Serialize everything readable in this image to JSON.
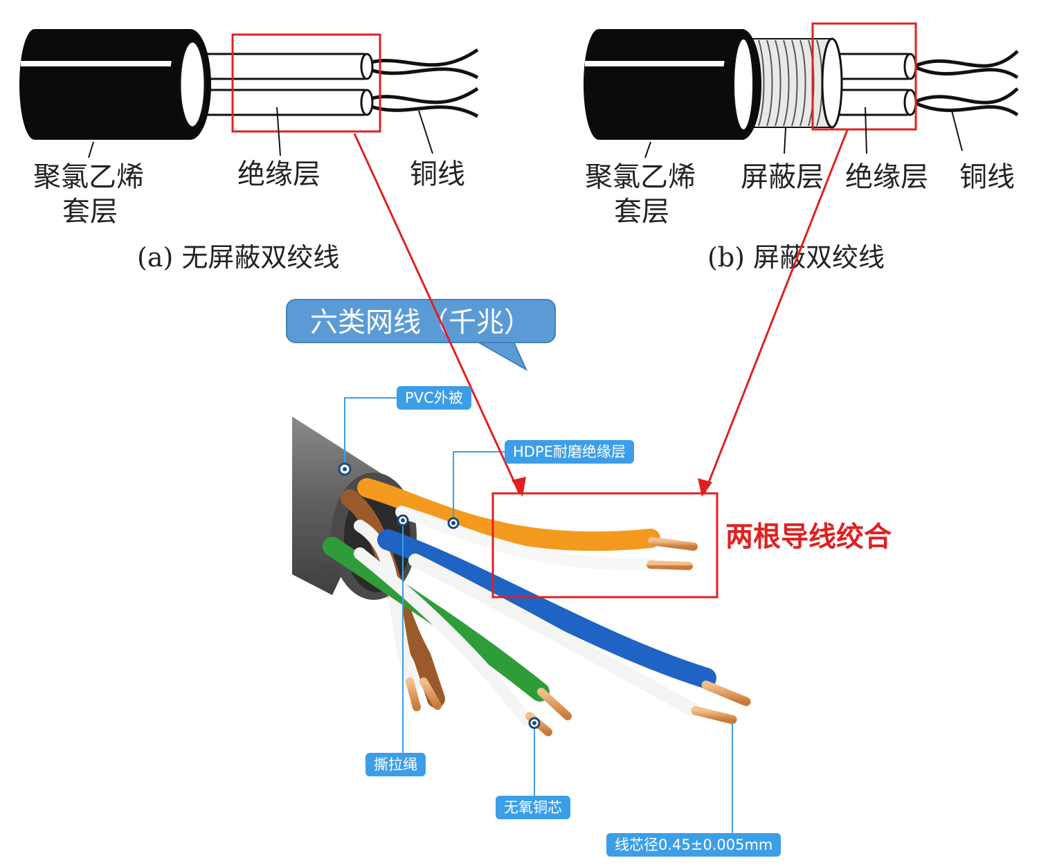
{
  "diagram_a": {
    "labels": {
      "jacket": "聚氯乙烯",
      "jacket_2": "套层",
      "insulation": "绝缘层",
      "copper": "铜线"
    },
    "caption": "(a) 无屏蔽双绞线"
  },
  "diagram_b": {
    "labels": {
      "jacket": "聚氯乙烯",
      "jacket_2": "套层",
      "shield": "屏蔽层",
      "insulation": "绝缘层",
      "copper": "铜线"
    },
    "caption": "(b) 屏蔽双绞线"
  },
  "callout": {
    "title": "六类网线（千兆）"
  },
  "photo_labels": {
    "pvc": "PVC外被",
    "hdpe": "HDPE耐磨绝缘层",
    "ripcord": "撕拉绳",
    "copper_core": "无氧铜芯",
    "diameter": "线芯径0.45±0.005mm"
  },
  "annotation": {
    "text": "两根导线绞合"
  },
  "colors": {
    "highlight": "#e02020",
    "tag_bg": "#3d9ee8",
    "bubble_bg": "#5b9bd5",
    "orange": "#f39a1e",
    "blue": "#1f63c4",
    "green": "#2f9c3a",
    "brown": "#9a5a2a",
    "jacket_gray": "#6b6b6b",
    "copper": "#d89055"
  }
}
